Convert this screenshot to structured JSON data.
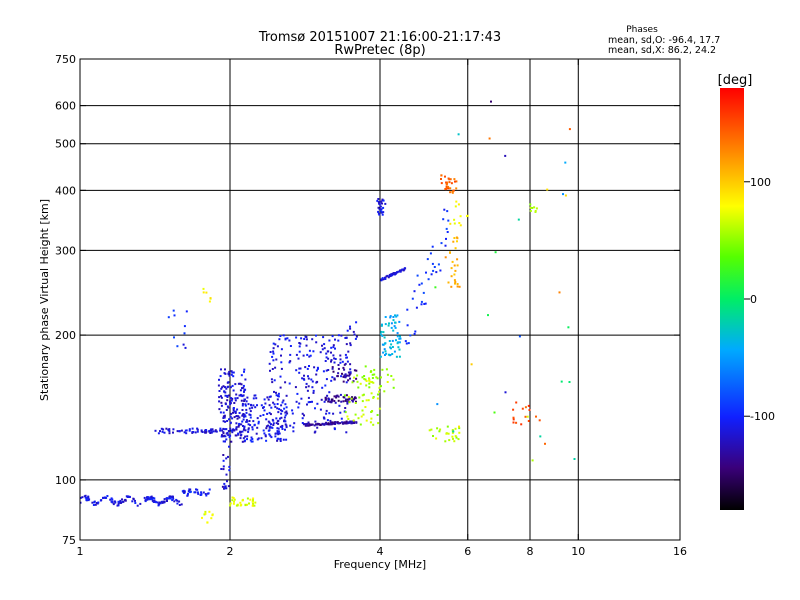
{
  "chart_data": {
    "type": "scatter",
    "title": "Tromsø 20151007 21:16:00-21:17:43",
    "subtitle": "RwPretec (8p)",
    "xlabel": "Frequency [MHz]",
    "ylabel": "Stationary phase Virtual Height [km]",
    "x_scale": "log",
    "y_scale": "log",
    "xlim": [
      1,
      16
    ],
    "ylim": [
      75,
      750
    ],
    "x_ticks": [
      1,
      2,
      4,
      6,
      8,
      10,
      16
    ],
    "y_ticks": [
      75,
      100,
      200,
      300,
      400,
      500,
      600,
      750
    ],
    "x_gridlines": [
      2,
      4,
      6,
      8,
      10
    ],
    "y_gridlines": [
      100,
      200,
      300,
      400,
      500,
      600
    ],
    "grid": true,
    "legend": {
      "title": "Phases",
      "lines": [
        "mean, sd,O: -96.4, 17.7",
        "mean, sd,X: 86.2, 24.2"
      ],
      "placement": "top-right"
    },
    "colorbar": {
      "label": "[deg]",
      "ticks": [
        100,
        0,
        -100
      ],
      "range": [
        -180,
        180
      ],
      "placement": "right"
    },
    "point_groups": [
      {
        "x_range": [
          1.0,
          1.6
        ],
        "height_range": [
          88,
          93
        ],
        "phase": -110,
        "count": 130,
        "trend": "ground_trace"
      },
      {
        "x_range": [
          1.6,
          1.85
        ],
        "height_range": [
          92,
          96
        ],
        "phase": -105,
        "count": 35,
        "trend": "ground_trace"
      },
      {
        "x_range": [
          1.92,
          2.0
        ],
        "height_range": [
          95,
          120
        ],
        "phase": -115,
        "count": 20
      },
      {
        "x_range": [
          2.0,
          2.25
        ],
        "height_range": [
          88,
          92
        ],
        "phase": 70,
        "count": 30
      },
      {
        "x_range": [
          1.75,
          1.85
        ],
        "height_range": [
          80,
          86
        ],
        "phase": 70,
        "count": 10
      },
      {
        "x_range": [
          1.4,
          2.05
        ],
        "height_range": [
          125,
          128
        ],
        "phase": -115,
        "count": 70
      },
      {
        "x_range": [
          1.9,
          2.15
        ],
        "height_range": [
          120,
          170
        ],
        "phase": -115,
        "count": 160
      },
      {
        "x_range": [
          2.1,
          2.6
        ],
        "height_range": [
          120,
          150
        ],
        "phase": -110,
        "count": 150
      },
      {
        "x_range": [
          2.4,
          3.5
        ],
        "height_range": [
          125,
          200
        ],
        "phase": -112,
        "count": 230
      },
      {
        "x_range": [
          2.8,
          3.6
        ],
        "height_range": [
          130,
          132
        ],
        "phase": -135,
        "count": 90,
        "trend": "flat"
      },
      {
        "x_range": [
          3.1,
          3.6
        ],
        "height_range": [
          145,
          150
        ],
        "phase": -140,
        "count": 40
      },
      {
        "x_range": [
          3.2,
          3.6
        ],
        "height_range": [
          160,
          175
        ],
        "phase": -135,
        "count": 30
      },
      {
        "x_range": [
          3.4,
          3.6
        ],
        "height_range": [
          190,
          215
        ],
        "phase": -110,
        "count": 12
      },
      {
        "x_range": [
          3.4,
          4.0
        ],
        "height_range": [
          130,
          165
        ],
        "phase": 60,
        "count": 50
      },
      {
        "x_range": [
          3.7,
          4.3
        ],
        "height_range": [
          150,
          175
        ],
        "phase": 60,
        "count": 30
      },
      {
        "x_range": [
          4.0,
          4.4
        ],
        "height_range": [
          180,
          220
        ],
        "phase": -40,
        "count": 60
      },
      {
        "x_range": [
          4.0,
          4.5
        ],
        "height_range": [
          260,
          275
        ],
        "phase": -115,
        "count": 50,
        "trend": "flat"
      },
      {
        "x_range": [
          3.95,
          4.1
        ],
        "height_range": [
          355,
          385
        ],
        "phase": -110,
        "count": 25
      },
      {
        "x_range": [
          4.5,
          5.5
        ],
        "height_range": [
          205,
          340
        ],
        "phase": -95,
        "count": 40,
        "trend": "diagonal"
      },
      {
        "x_range": [
          5.0,
          5.8
        ],
        "height_range": [
          120,
          130
        ],
        "phase": 60,
        "count": 25
      },
      {
        "x_range": [
          5.4,
          5.8
        ],
        "height_range": [
          250,
          320
        ],
        "phase": 110,
        "count": 25
      },
      {
        "x_range": [
          5.3,
          5.7
        ],
        "height_range": [
          395,
          430
        ],
        "phase": 140,
        "count": 30
      },
      {
        "x_range": [
          5.5,
          6.0
        ],
        "height_range": [
          330,
          380
        ],
        "phase": 80,
        "count": 10
      },
      {
        "x_range": [
          1.5,
          1.65
        ],
        "height_range": [
          185,
          225
        ],
        "phase": -100,
        "count": 10
      },
      {
        "x_range": [
          1.75,
          1.85
        ],
        "height_range": [
          230,
          250
        ],
        "phase": 80,
        "count": 6
      },
      {
        "x_range": [
          7.4,
          8.4
        ],
        "height_range": [
          130,
          145
        ],
        "phase": 150,
        "count": 15
      },
      {
        "x_range": [
          8.0,
          8.4
        ],
        "height_range": [
          360,
          375
        ],
        "phase": 60,
        "count": 8
      },
      {
        "x_range": [
          5.0,
          10.0
        ],
        "height_range": [
          95,
          620
        ],
        "phase": 0,
        "count": 30,
        "trend": "scattered"
      }
    ]
  }
}
